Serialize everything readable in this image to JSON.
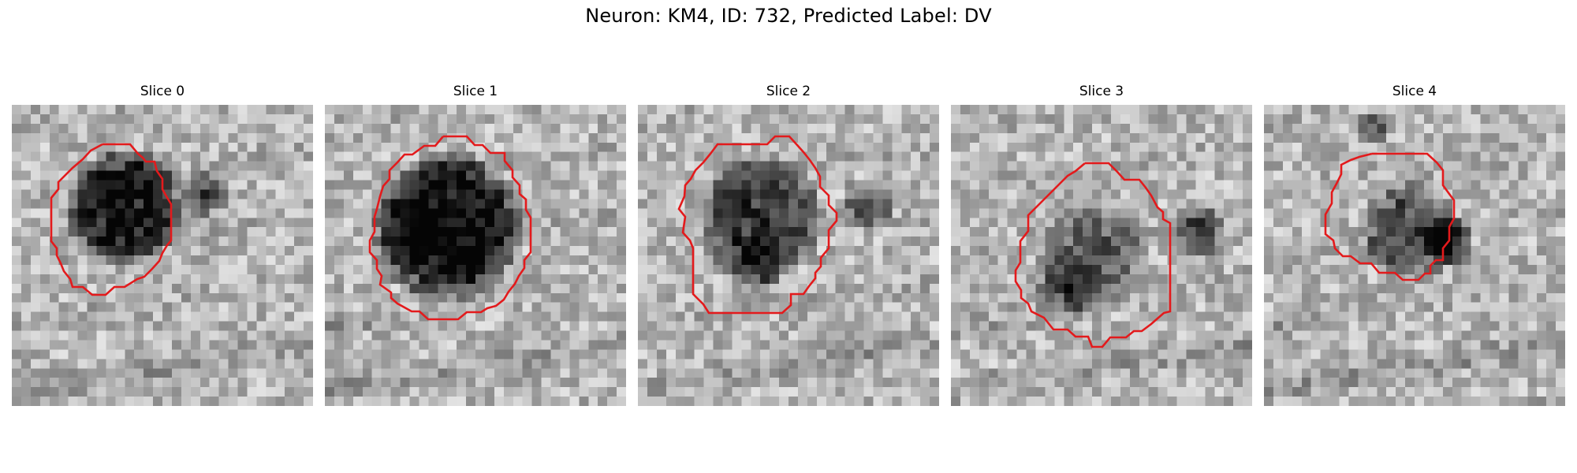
{
  "figure": {
    "title": "Neuron: KM4, ID: 732, Predicted Label: DV"
  },
  "contour_color": "#e31a1c",
  "colormap": "gray",
  "panels": [
    {
      "title": "Slice 0"
    },
    {
      "title": "Slice 1"
    },
    {
      "title": "Slice 2"
    },
    {
      "title": "Slice 3"
    },
    {
      "title": "Slice 4"
    }
  ]
}
